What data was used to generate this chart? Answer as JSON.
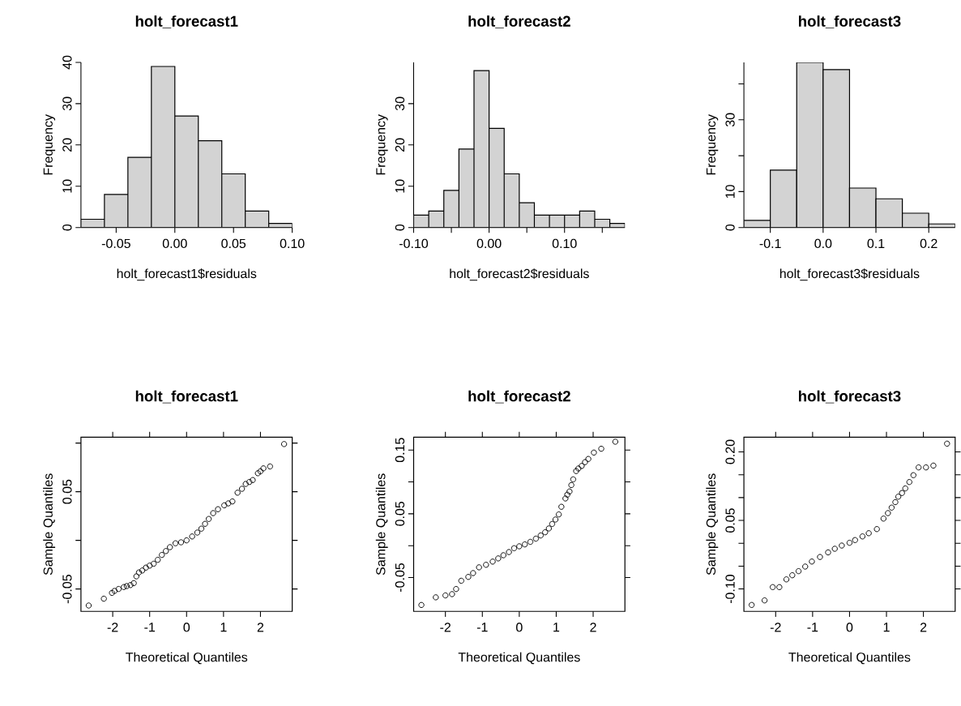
{
  "chart_data": [
    {
      "type": "histogram",
      "title": "holt_forecast1",
      "xlabel": "holt_forecast1$residuals",
      "ylabel": "Frequency",
      "color": "#d3d3d3",
      "bins": [
        -0.08,
        -0.06,
        -0.04,
        -0.02,
        0.0,
        0.02,
        0.04,
        0.06,
        0.08,
        0.1
      ],
      "values": [
        2,
        8,
        17,
        39,
        27,
        21,
        13,
        4,
        1
      ],
      "xlim": [
        -0.08,
        0.1
      ],
      "ylim": [
        0,
        40
      ],
      "xticks": [
        -0.05,
        {
          "value": 0,
          "label": "0.00"
        },
        0.05,
        {
          "value": 0.1,
          "label": "0.10"
        }
      ],
      "yticks": [
        0,
        10,
        20,
        30,
        40
      ]
    },
    {
      "type": "histogram",
      "title": "holt_forecast2",
      "xlabel": "holt_forecast2$residuals",
      "ylabel": "Frequency",
      "color": "#d3d3d3",
      "bins": [
        -0.1,
        -0.08,
        -0.06,
        -0.04,
        -0.02,
        0.0,
        0.02,
        0.04,
        0.06,
        0.08,
        0.1,
        0.12,
        0.14,
        0.16,
        0.18
      ],
      "values": [
        3,
        4,
        9,
        19,
        38,
        24,
        13,
        6,
        3,
        3,
        3,
        4,
        2,
        1
      ],
      "xlim": [
        -0.1,
        0.18
      ],
      "ylim": [
        0,
        40
      ],
      "xticks": [
        {
          "value": -0.1,
          "label": "-0.10"
        },
        {
          "value": -0.05,
          "label": null
        },
        {
          "value": 0,
          "label": "0.00"
        },
        {
          "value": 0.05,
          "label": null
        },
        {
          "value": 0.1,
          "label": "0.10"
        },
        {
          "value": 0.15,
          "label": null
        }
      ],
      "yticks": [
        0,
        10,
        20,
        30
      ]
    },
    {
      "type": "histogram",
      "title": "holt_forecast3",
      "xlabel": "holt_forecast3$residuals",
      "ylabel": "Frequency",
      "color": "#d3d3d3",
      "bins": [
        -0.15,
        -0.1,
        -0.05,
        0.0,
        0.05,
        0.1,
        0.15,
        0.2,
        0.25
      ],
      "values": [
        2,
        16,
        46,
        44,
        11,
        8,
        4,
        1
      ],
      "xlim": [
        -0.15,
        0.25
      ],
      "ylim": [
        0,
        46
      ],
      "xticks": [
        -0.1,
        {
          "value": 0,
          "label": "0.0"
        },
        0.1,
        0.2
      ],
      "yticks": [
        0,
        10,
        {
          "value": 20,
          "label": null
        },
        30,
        {
          "value": 40,
          "label": null
        }
      ]
    },
    {
      "type": "scatter",
      "title": "holt_forecast1",
      "xlabel": "Theoretical Quantiles",
      "ylabel": "Sample Quantiles",
      "color": "#000000",
      "marker": "circle",
      "x": [
        -2.65,
        -2.24,
        -2.02,
        -1.95,
        -1.84,
        -1.7,
        -1.62,
        -1.52,
        -1.43,
        -1.36,
        -1.29,
        -1.2,
        -1.1,
        -1.0,
        -0.89,
        -0.78,
        -0.67,
        -0.56,
        -0.45,
        -0.3,
        -0.15,
        0,
        0.15,
        0.29,
        0.4,
        0.5,
        0.6,
        0.72,
        0.85,
        1.02,
        1.13,
        1.24,
        1.38,
        1.5,
        1.6,
        1.7,
        1.79,
        1.93,
        2.0,
        2.08,
        2.26,
        2.64
      ],
      "values": [
        -0.067,
        -0.06,
        -0.054,
        -0.052,
        -0.05,
        -0.048,
        -0.047,
        -0.046,
        -0.044,
        -0.037,
        -0.033,
        -0.031,
        -0.028,
        -0.026,
        -0.024,
        -0.02,
        -0.015,
        -0.011,
        -0.007,
        -0.003,
        -0.002,
        0.0,
        0.004,
        0.008,
        0.012,
        0.017,
        0.022,
        0.028,
        0.032,
        0.036,
        0.038,
        0.04,
        0.049,
        0.053,
        0.058,
        0.06,
        0.062,
        0.069,
        0.071,
        0.074,
        0.076,
        0.099
      ],
      "xlim": [
        -2.86,
        2.86
      ],
      "ylim": [
        -0.073,
        0.106
      ],
      "xticks": [
        -2,
        -1,
        0,
        1,
        2
      ],
      "yticks": [
        -0.05,
        {
          "value": 0,
          "label": null
        },
        0.05,
        {
          "value": 0.1,
          "label": null
        }
      ]
    },
    {
      "type": "scatter",
      "title": "holt_forecast2",
      "xlabel": "Theoretical Quantiles",
      "ylabel": "Sample Quantiles",
      "color": "#000000",
      "marker": "circle",
      "x": [
        -2.65,
        -2.26,
        -2.0,
        -1.82,
        -1.71,
        -1.57,
        -1.38,
        -1.25,
        -1.09,
        -0.9,
        -0.72,
        -0.57,
        -0.43,
        -0.28,
        -0.14,
        0.0,
        0.15,
        0.3,
        0.45,
        0.58,
        0.7,
        0.8,
        0.89,
        0.98,
        1.07,
        1.14,
        1.25,
        1.3,
        1.36,
        1.41,
        1.46,
        1.54,
        1.6,
        1.69,
        1.78,
        1.87,
        2.02,
        2.22,
        2.6
      ],
      "values": [
        -0.093,
        -0.081,
        -0.078,
        -0.076,
        -0.068,
        -0.055,
        -0.049,
        -0.043,
        -0.034,
        -0.03,
        -0.025,
        -0.02,
        -0.015,
        -0.01,
        -0.004,
        -0.001,
        0.002,
        0.006,
        0.011,
        0.016,
        0.021,
        0.027,
        0.034,
        0.041,
        0.049,
        0.061,
        0.074,
        0.08,
        0.085,
        0.095,
        0.104,
        0.117,
        0.121,
        0.125,
        0.131,
        0.136,
        0.146,
        0.152,
        0.163
      ],
      "xlim": [
        -2.86,
        2.86
      ],
      "ylim": [
        -0.103,
        0.17
      ],
      "xticks": [
        -2,
        -1,
        0,
        1,
        2
      ],
      "yticks": [
        -0.05,
        {
          "value": 0,
          "label": null
        },
        0.05,
        {
          "value": 0.1,
          "label": null
        },
        0.15
      ]
    },
    {
      "type": "scatter",
      "title": "holt_forecast3",
      "xlabel": "Theoretical Quantiles",
      "ylabel": "Sample Quantiles",
      "color": "#000000",
      "marker": "circle",
      "x": [
        -2.65,
        -2.3,
        -2.08,
        -1.9,
        -1.71,
        -1.55,
        -1.38,
        -1.2,
        -1.02,
        -0.8,
        -0.58,
        -0.4,
        -0.21,
        0.0,
        0.15,
        0.35,
        0.52,
        0.74,
        0.92,
        1.04,
        1.14,
        1.24,
        1.32,
        1.42,
        1.51,
        1.62,
        1.73,
        1.87,
        2.07,
        2.27,
        2.64
      ],
      "values": [
        -0.135,
        -0.125,
        -0.096,
        -0.096,
        -0.079,
        -0.07,
        -0.061,
        -0.051,
        -0.04,
        -0.03,
        -0.02,
        -0.012,
        -0.005,
        0.001,
        0.007,
        0.015,
        0.022,
        0.031,
        0.054,
        0.066,
        0.078,
        0.09,
        0.102,
        0.11,
        0.12,
        0.134,
        0.149,
        0.166,
        0.166,
        0.17,
        0.218
      ],
      "xlim": [
        -2.86,
        2.86
      ],
      "ylim": [
        -0.149,
        0.232
      ],
      "xticks": [
        -2,
        -1,
        0,
        1,
        2
      ],
      "yticks": [
        {
          "value": -0.1,
          "label": "-0.10"
        },
        {
          "value": -0.05,
          "label": null
        },
        {
          "value": 0,
          "label": null
        },
        0.05,
        {
          "value": 0.1,
          "label": null
        },
        {
          "value": 0.15,
          "label": null
        },
        {
          "value": 0.2,
          "label": "0.20"
        }
      ]
    }
  ]
}
